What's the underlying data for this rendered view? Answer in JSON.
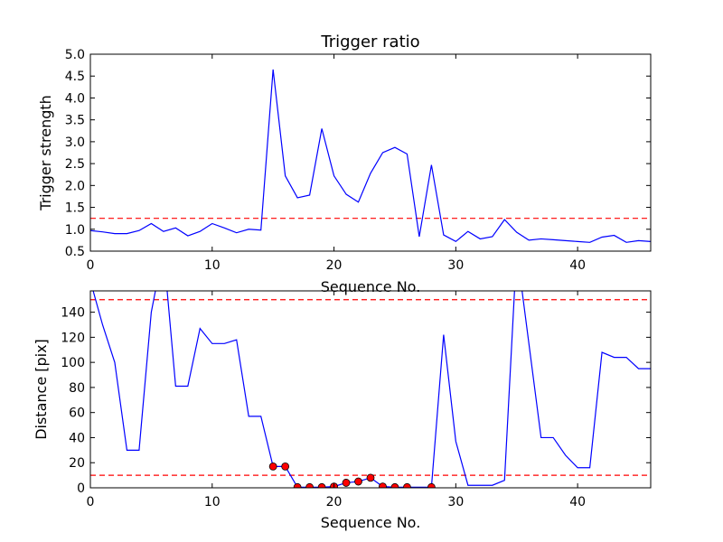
{
  "chart_data": [
    {
      "type": "line",
      "title": "Trigger ratio",
      "xlabel": "Sequence No.",
      "ylabel": "Trigger strength",
      "xlim": [
        0,
        46
      ],
      "ylim": [
        0.5,
        5.0
      ],
      "xticks": [
        0,
        10,
        20,
        30,
        40
      ],
      "yticks": [
        0.5,
        1.0,
        1.5,
        2.0,
        2.5,
        3.0,
        3.5,
        4.0,
        4.5,
        5.0
      ],
      "grid": false,
      "series": [
        {
          "color": "#0000ff",
          "x": [
            0,
            1,
            2,
            3,
            4,
            5,
            6,
            7,
            8,
            9,
            10,
            11,
            12,
            13,
            14,
            15,
            16,
            17,
            18,
            19,
            20,
            21,
            22,
            23,
            24,
            25,
            26,
            27,
            28,
            29,
            30,
            31,
            32,
            33,
            34,
            35,
            36,
            37,
            38,
            39,
            40,
            41,
            42,
            43,
            44,
            45,
            46
          ],
          "y": [
            0.97,
            0.94,
            0.9,
            0.9,
            0.97,
            1.13,
            0.95,
            1.03,
            0.85,
            0.95,
            1.13,
            1.03,
            0.92,
            1.0,
            0.98,
            4.65,
            2.22,
            1.72,
            1.78,
            3.3,
            2.22,
            1.8,
            1.62,
            2.28,
            2.75,
            2.87,
            2.72,
            0.83,
            2.47,
            0.87,
            0.72,
            0.95,
            0.78,
            0.83,
            1.22,
            0.93,
            0.75,
            0.78,
            0.76,
            0.74,
            0.72,
            0.7,
            0.82,
            0.86,
            0.7,
            0.74,
            0.72
          ]
        }
      ],
      "reference_lines": [
        {
          "y": 1.25,
          "color": "#ff0000",
          "style": "dashed"
        }
      ]
    },
    {
      "type": "line",
      "title": "",
      "xlabel": "Sequence No.",
      "ylabel": "Distance [pix]",
      "xlim": [
        0,
        46
      ],
      "ylim": [
        0,
        157
      ],
      "xticks": [
        0,
        10,
        20,
        30,
        40
      ],
      "yticks": [
        0,
        20,
        40,
        60,
        80,
        100,
        120,
        140
      ],
      "grid": false,
      "series": [
        {
          "color": "#0000ff",
          "x": [
            0,
            1,
            2,
            3,
            4,
            5,
            6,
            7,
            8,
            9,
            10,
            11,
            12,
            13,
            14,
            15,
            16,
            17,
            18,
            19,
            20,
            21,
            22,
            23,
            24,
            25,
            26,
            27,
            28,
            29,
            30,
            31,
            32,
            33,
            34,
            35,
            36,
            37,
            38,
            39,
            40,
            41,
            42,
            43,
            44,
            45,
            46
          ],
          "y": [
            165,
            130,
            100,
            30,
            30,
            140,
            190,
            81,
            81,
            127,
            115,
            115,
            118,
            57,
            57,
            17,
            17,
            0.5,
            0.5,
            0.5,
            1,
            4,
            5,
            8,
            1,
            0.5,
            0.5,
            0.5,
            0.5,
            122,
            37,
            2,
            2,
            2,
            6,
            190,
            115,
            40,
            40,
            26,
            16,
            16,
            108,
            104,
            104,
            95,
            95
          ]
        }
      ],
      "markers": {
        "color": "#ff0000",
        "x": [
          15,
          16,
          17,
          18,
          19,
          20,
          21,
          22,
          23,
          24,
          25,
          26,
          28
        ],
        "y": [
          17,
          17,
          0.5,
          0.5,
          0.5,
          1,
          4,
          5,
          8,
          1,
          0.5,
          0.5,
          0.5
        ]
      },
      "reference_lines": [
        {
          "y": 150,
          "color": "#ff0000",
          "style": "dashed"
        },
        {
          "y": 10,
          "color": "#ff0000",
          "style": "dashed"
        }
      ]
    }
  ]
}
